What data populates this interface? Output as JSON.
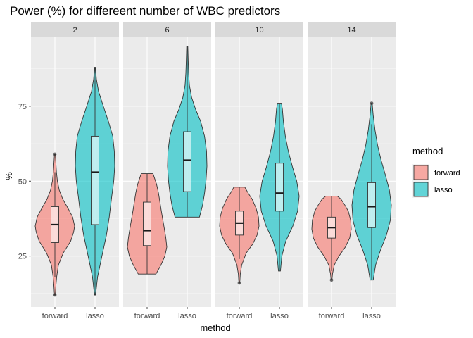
{
  "chart_data": {
    "type": "violin",
    "title": "Power (%) for differeent number of WBC predictors",
    "xlabel": "method",
    "ylabel": "%",
    "categories": [
      "forward",
      "lasso"
    ],
    "ylim": [
      8,
      98
    ],
    "y_ticks": [
      25,
      50,
      75
    ],
    "colors": {
      "forward": "#F8766D",
      "lasso": "#00BFC4"
    },
    "legend": {
      "title": "method",
      "position": "right",
      "entries": [
        "forward",
        "lasso"
      ]
    },
    "facets": [
      {
        "label": "2",
        "violins": [
          {
            "method": "forward",
            "min": 12,
            "max": 59,
            "q1": 29.5,
            "median": 35.5,
            "q3": 41.5,
            "whisker_low": 18,
            "whisker_high": 53,
            "outliers": [
              12,
              59
            ],
            "density": [
              [
                12,
                0.02
              ],
              [
                15,
                0.05
              ],
              [
                18,
                0.09
              ],
              [
                22,
                0.18
              ],
              [
                26,
                0.42
              ],
              [
                30,
                0.8
              ],
              [
                33,
                0.95
              ],
              [
                35,
                1.0
              ],
              [
                38,
                0.9
              ],
              [
                41,
                0.66
              ],
              [
                44,
                0.4
              ],
              [
                47,
                0.22
              ],
              [
                50,
                0.13
              ],
              [
                53,
                0.08
              ],
              [
                56,
                0.05
              ],
              [
                59,
                0.02
              ]
            ]
          },
          {
            "method": "lasso",
            "min": 12,
            "max": 88,
            "q1": 35.5,
            "median": 53,
            "q3": 65,
            "whisker_low": 12,
            "whisker_high": 88,
            "outliers": [],
            "density": [
              [
                12,
                0.03
              ],
              [
                18,
                0.13
              ],
              [
                25,
                0.35
              ],
              [
                32,
                0.58
              ],
              [
                38,
                0.72
              ],
              [
                45,
                0.85
              ],
              [
                50,
                0.95
              ],
              [
                55,
                1.0
              ],
              [
                60,
                0.98
              ],
              [
                65,
                0.9
              ],
              [
                70,
                0.68
              ],
              [
                75,
                0.42
              ],
              [
                80,
                0.18
              ],
              [
                84,
                0.07
              ],
              [
                88,
                0.02
              ]
            ]
          }
        ]
      },
      {
        "label": "6",
        "violins": [
          {
            "method": "forward",
            "min": 19,
            "max": 52.5,
            "q1": 28.5,
            "median": 33.5,
            "q3": 43,
            "whisker_low": 19,
            "whisker_high": 52.5,
            "outliers": [],
            "density": [
              [
                19,
                0.45
              ],
              [
                22,
                0.7
              ],
              [
                25,
                0.9
              ],
              [
                28,
                1.0
              ],
              [
                31,
                0.95
              ],
              [
                34,
                0.88
              ],
              [
                37,
                0.8
              ],
              [
                40,
                0.72
              ],
              [
                43,
                0.65
              ],
              [
                46,
                0.58
              ],
              [
                49,
                0.48
              ],
              [
                52.5,
                0.3
              ]
            ]
          },
          {
            "method": "lasso",
            "min": 38,
            "max": 95,
            "q1": 46.5,
            "median": 57,
            "q3": 66.5,
            "whisker_low": 38,
            "whisker_high": 95,
            "outliers": [],
            "density": [
              [
                38,
                0.62
              ],
              [
                42,
                0.78
              ],
              [
                46,
                0.88
              ],
              [
                50,
                0.95
              ],
              [
                55,
                1.0
              ],
              [
                60,
                0.98
              ],
              [
                65,
                0.88
              ],
              [
                70,
                0.68
              ],
              [
                74,
                0.42
              ],
              [
                78,
                0.22
              ],
              [
                82,
                0.11
              ],
              [
                86,
                0.07
              ],
              [
                90,
                0.05
              ],
              [
                95,
                0.03
              ]
            ]
          }
        ]
      },
      {
        "label": "10",
        "violins": [
          {
            "method": "forward",
            "min": 16,
            "max": 48,
            "q1": 32,
            "median": 36,
            "q3": 40,
            "whisker_low": 24,
            "whisker_high": 48,
            "outliers": [
              16
            ],
            "density": [
              [
                16,
                0.02
              ],
              [
                19,
                0.05
              ],
              [
                22,
                0.12
              ],
              [
                26,
                0.35
              ],
              [
                29,
                0.68
              ],
              [
                32,
                0.9
              ],
              [
                35,
                1.0
              ],
              [
                38,
                0.97
              ],
              [
                41,
                0.85
              ],
              [
                44,
                0.65
              ],
              [
                46,
                0.45
              ],
              [
                48,
                0.28
              ]
            ]
          },
          {
            "method": "lasso",
            "min": 20,
            "max": 76,
            "q1": 40,
            "median": 46,
            "q3": 56,
            "whisker_low": 20,
            "whisker_high": 76,
            "outliers": [],
            "density": [
              [
                20,
                0.05
              ],
              [
                25,
                0.12
              ],
              [
                30,
                0.32
              ],
              [
                35,
                0.68
              ],
              [
                40,
                0.92
              ],
              [
                45,
                1.0
              ],
              [
                50,
                0.88
              ],
              [
                55,
                0.65
              ],
              [
                60,
                0.45
              ],
              [
                65,
                0.3
              ],
              [
                70,
                0.2
              ],
              [
                74,
                0.15
              ],
              [
                76,
                0.1
              ]
            ]
          }
        ]
      },
      {
        "label": "14",
        "violins": [
          {
            "method": "forward",
            "min": 17,
            "max": 45,
            "q1": 31,
            "median": 34.5,
            "q3": 38,
            "whisker_low": 20,
            "whisker_high": 45,
            "outliers": [
              17
            ],
            "density": [
              [
                17,
                0.02
              ],
              [
                19,
                0.05
              ],
              [
                22,
                0.14
              ],
              [
                25,
                0.38
              ],
              [
                28,
                0.7
              ],
              [
                31,
                0.92
              ],
              [
                34,
                1.0
              ],
              [
                37,
                0.97
              ],
              [
                40,
                0.85
              ],
              [
                42,
                0.68
              ],
              [
                44,
                0.48
              ],
              [
                45,
                0.3
              ]
            ]
          },
          {
            "method": "lasso",
            "min": 17,
            "max": 76,
            "q1": 34.5,
            "median": 41.5,
            "q3": 49.5,
            "whisker_low": 17,
            "whisker_high": 69,
            "outliers": [
              76
            ],
            "density": [
              [
                17,
                0.08
              ],
              [
                22,
                0.2
              ],
              [
                27,
                0.45
              ],
              [
                32,
                0.75
              ],
              [
                37,
                0.95
              ],
              [
                42,
                1.0
              ],
              [
                47,
                0.9
              ],
              [
                52,
                0.7
              ],
              [
                57,
                0.48
              ],
              [
                62,
                0.3
              ],
              [
                67,
                0.17
              ],
              [
                72,
                0.08
              ],
              [
                76,
                0.03
              ]
            ]
          }
        ]
      }
    ]
  }
}
